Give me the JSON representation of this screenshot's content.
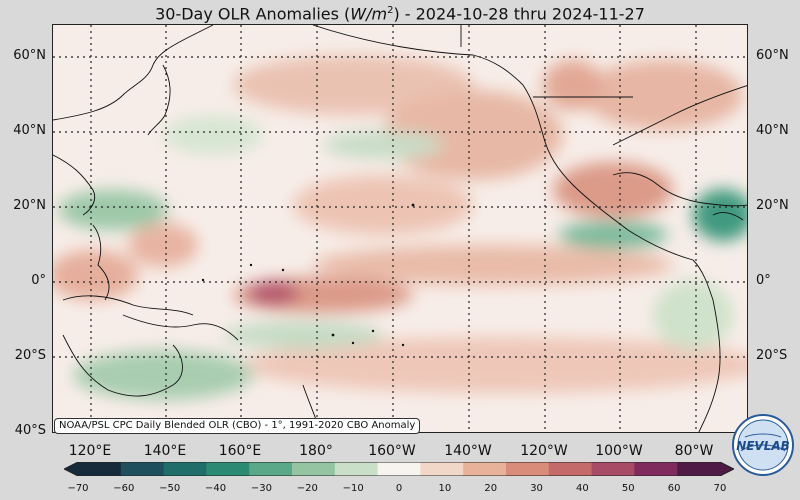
{
  "title_prefix": "30-Day OLR Anomalies (",
  "title_units": "W/m",
  "title_units_exp": "2",
  "title_suffix": ") - 2024-10-28 thru 2024-11-27",
  "lat_labels": [
    "60°N",
    "40°N",
    "20°N",
    "0°",
    "20°S",
    "40°S"
  ],
  "lon_labels": [
    "120°E",
    "140°E",
    "160°E",
    "180°",
    "160°W",
    "140°W",
    "120°W",
    "100°W",
    "80°W"
  ],
  "source_label": "NOAA/PSL CPC Daily Blended OLR (CBO) - 1°, 1991-2020 CBO Anomaly",
  "colorbar": {
    "min": -70,
    "max": 70,
    "ticks": [
      "−70",
      "−60",
      "−50",
      "−40",
      "−30",
      "−20",
      "−10",
      "0",
      "10",
      "20",
      "30",
      "40",
      "50",
      "60",
      "70"
    ],
    "colors": [
      "#162a3c",
      "#1d4f5c",
      "#1f6e6a",
      "#2c8a74",
      "#5aa887",
      "#94c4a2",
      "#c9dfc8",
      "#f7f3ef",
      "#f1d7c8",
      "#e8b19a",
      "#d98c7a",
      "#c46a6b",
      "#a74b66",
      "#7f2b5d",
      "#4f1a45"
    ]
  },
  "logo_text": "NEVLAB"
}
